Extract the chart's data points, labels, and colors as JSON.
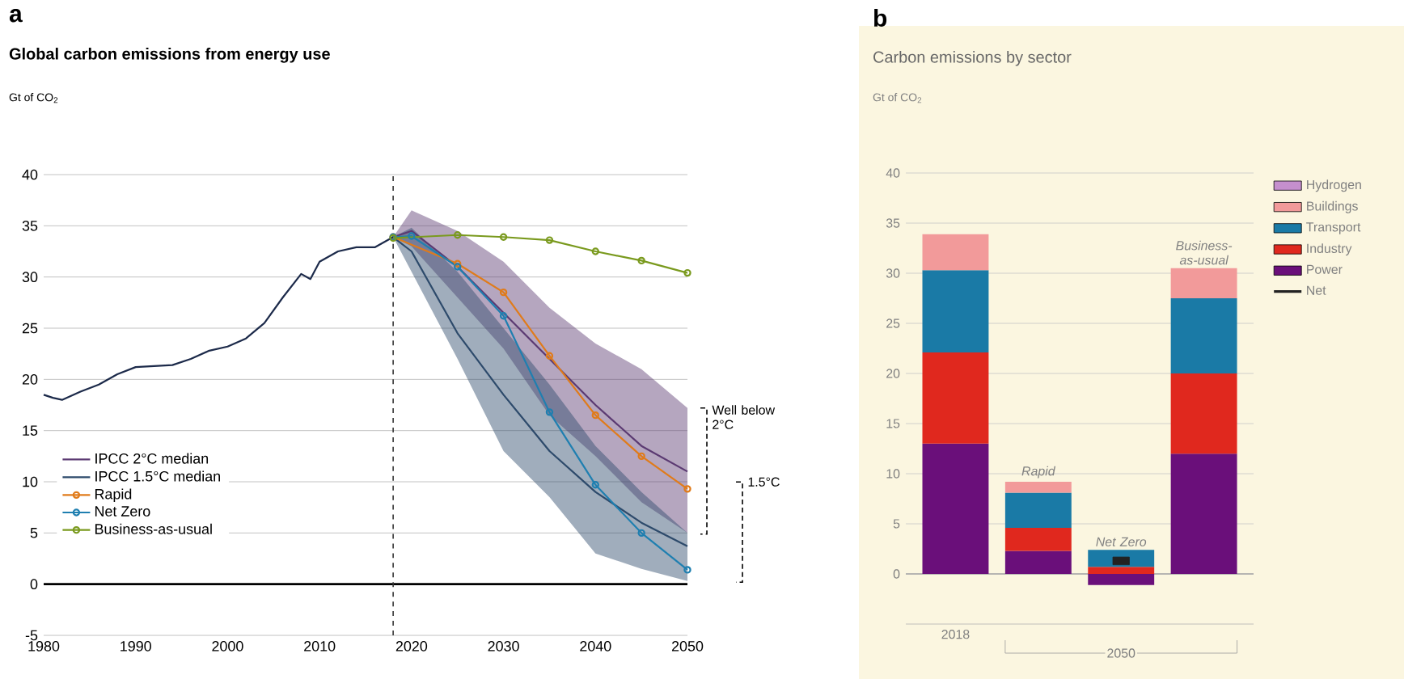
{
  "chart_data": [
    {
      "type": "line",
      "title": "Global carbon emissions from energy use",
      "ylabel": "Gt of CO$_{2}$",
      "xlim": [
        1980,
        2050
      ],
      "ylim": [
        -5,
        40
      ],
      "xticks": [
        1980,
        1990,
        2000,
        2010,
        2020,
        2030,
        2040,
        2050
      ],
      "yticks": [
        -5,
        0,
        5,
        10,
        15,
        20,
        25,
        30,
        35,
        40
      ],
      "grid": "y",
      "legend": "bottom left",
      "series": [
        {
          "color": "#1c2a4a",
          "marker": "none",
          "x": [
            1980,
            1981,
            1982,
            1984,
            1986,
            1988,
            1990,
            1992,
            1994,
            1996,
            1998,
            2000,
            2002,
            2004,
            2006,
            2008,
            2009,
            2010,
            2012,
            2014,
            2016,
            2018
          ],
          "values": [
            18.5,
            18.2,
            18.0,
            18.8,
            19.5,
            20.5,
            21.2,
            21.3,
            21.4,
            22.0,
            22.8,
            23.2,
            24.0,
            25.5,
            28.0,
            30.3,
            29.8,
            31.5,
            32.5,
            32.9,
            32.9,
            33.9
          ]
        },
        {
          "name": "IPCC 2°C median",
          "color": "#5b3a72",
          "marker": "none",
          "x": [
            2018,
            2020,
            2025,
            2030,
            2035,
            2040,
            2045,
            2050
          ],
          "values": [
            33.9,
            34.5,
            31.0,
            26.5,
            22.0,
            17.5,
            13.5,
            11.0
          ],
          "lower": [
            33.9,
            33.0,
            28.0,
            23.0,
            16.5,
            12.5,
            8.0,
            5.0
          ],
          "upper": [
            33.9,
            36.5,
            34.5,
            31.5,
            27.0,
            23.5,
            21.0,
            17.2
          ]
        },
        {
          "name": "IPCC 1.5°C median",
          "color": "#2d4a6b",
          "marker": "none",
          "x": [
            2018,
            2020,
            2025,
            2030,
            2035,
            2040,
            2045,
            2050
          ],
          "values": [
            33.9,
            32.5,
            24.5,
            18.5,
            13.0,
            9.0,
            6.0,
            3.7
          ],
          "lower": [
            33.9,
            30.5,
            22.0,
            13.0,
            8.5,
            3.0,
            1.5,
            0.3
          ],
          "upper": [
            33.9,
            34.8,
            30.5,
            25.0,
            19.5,
            13.5,
            9.0,
            5.0
          ]
        },
        {
          "name": "Rapid",
          "color": "#e07b1a",
          "marker": "circle",
          "x": [
            2018,
            2025,
            2030,
            2035,
            2040,
            2045,
            2050
          ],
          "values": [
            33.9,
            31.3,
            28.5,
            22.3,
            16.5,
            12.5,
            9.3
          ]
        },
        {
          "name": "Net Zero",
          "color": "#1f7fb0",
          "marker": "circle",
          "x": [
            2018,
            2020,
            2025,
            2030,
            2035,
            2040,
            2045,
            2050
          ],
          "values": [
            33.9,
            34.0,
            31.0,
            26.2,
            16.8,
            9.7,
            5.0,
            1.4
          ]
        },
        {
          "name": "Business-as-usual",
          "color": "#7a9a1e",
          "marker": "circle",
          "x": [
            2018,
            2025,
            2030,
            2035,
            2040,
            2045,
            2050
          ],
          "values": [
            33.8,
            34.1,
            33.9,
            33.6,
            32.5,
            31.6,
            30.4
          ]
        }
      ],
      "ref_lines": [
        {
          "axis": "y",
          "value": 0,
          "color": "#000000",
          "line_style": "solid"
        },
        {
          "axis": "x",
          "value": 2018,
          "color": "#333333",
          "line_style": "dashed"
        }
      ],
      "annotations": [
        "a",
        {
          "text": "Well below 2°C",
          "x": 2050,
          "y": 17.2
        },
        "1.5°C"
      ]
    },
    {
      "type": "bar",
      "stacked": true,
      "title": "Carbon emissions by sector",
      "ylabel": "Gt of CO$_{2}$",
      "categories": [
        "2018",
        null,
        null,
        null
      ],
      "ylim": [
        -5,
        40
      ],
      "yticks": [
        0,
        5,
        10,
        15,
        20,
        25,
        30,
        35,
        40
      ],
      "grid": "y",
      "legend": "right",
      "series": [
        {
          "name": "Power",
          "color": "#6a0f7a",
          "values": [
            13.0,
            2.3,
            -1.1,
            12.0
          ]
        },
        {
          "name": "Industry",
          "color": "#e0281e",
          "values": [
            9.1,
            2.3,
            0.7,
            8.0
          ]
        },
        {
          "name": "Transport",
          "color": "#1a7aa6",
          "values": [
            8.2,
            3.5,
            1.7,
            7.5
          ]
        },
        {
          "name": "Buildings",
          "color": "#f29a9a",
          "values": [
            3.6,
            1.1,
            null,
            3.0
          ]
        },
        {
          "name": "Hydrogen",
          "color": "#c58fce",
          "values": [
            null,
            null,
            null,
            null
          ]
        },
        {
          "name": "Net",
          "type": "scatter",
          "color": "#222222",
          "values": [
            null,
            null,
            1.3,
            null
          ]
        }
      ],
      "annotations": [
        "b",
        "2050",
        "Rapid",
        "Net Zero",
        "Business-as-usual"
      ]
    }
  ]
}
